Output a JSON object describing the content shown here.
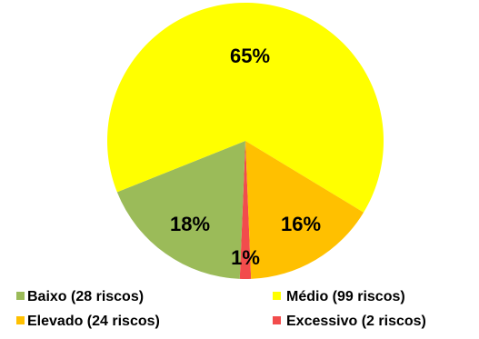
{
  "chart_data": {
    "type": "pie",
    "slices": [
      {
        "key": "baixo",
        "legend": "Baixo (28 riscos)",
        "label": "18%",
        "value": 28,
        "percent": 18,
        "color": "#9BBB59"
      },
      {
        "key": "medio",
        "legend": "Médio (99 riscos)",
        "label": "65%",
        "value": 99,
        "percent": 65,
        "color": "#FFFF00"
      },
      {
        "key": "elevado",
        "legend": "Elevado (24 riscos)",
        "label": "16%",
        "value": 24,
        "percent": 16,
        "color": "#FFC000"
      },
      {
        "key": "excessivo",
        "legend": "Excessivo (2 riscos)",
        "label": "1%",
        "value": 2,
        "percent": 1,
        "color": "#F24C4C"
      }
    ],
    "legend_placement": "bottom"
  }
}
